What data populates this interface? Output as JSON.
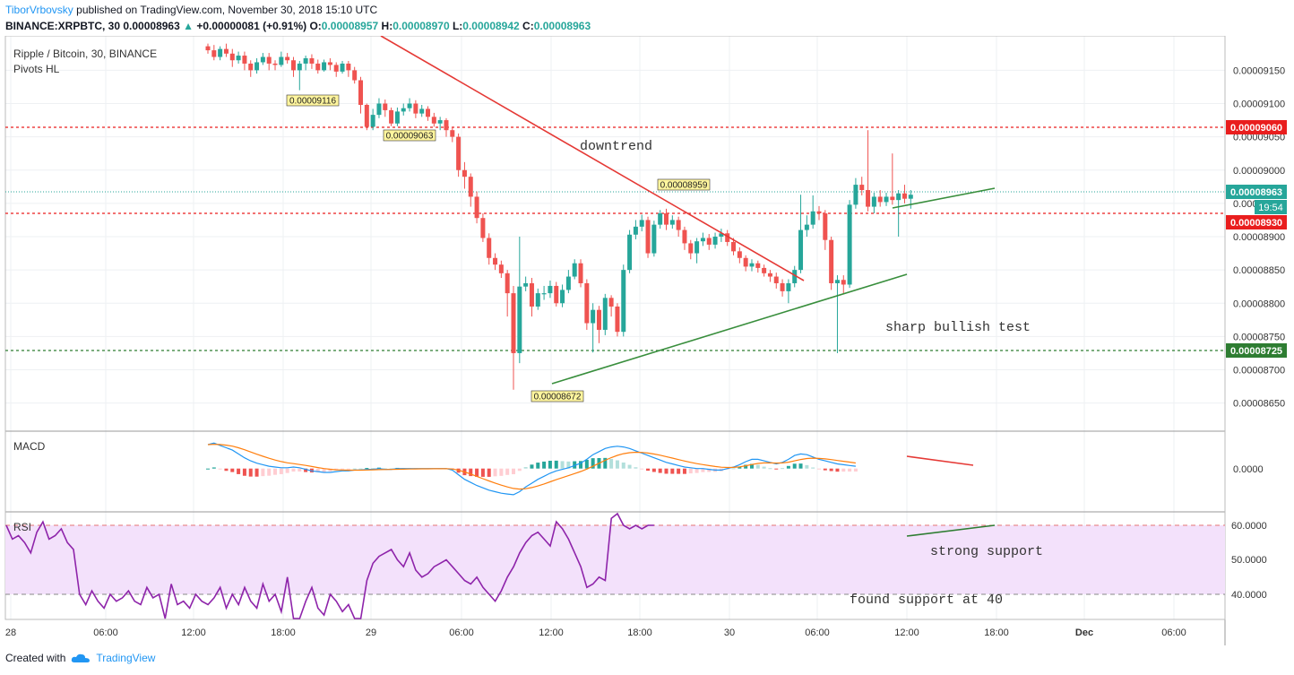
{
  "header": {
    "author": "TiborVrbovsky",
    "published": "published on TradingView.com, November 30, 2018 15:10 UTC",
    "symbol": "BINANCE:XRPBTC, 30",
    "price": "0.00008963",
    "arrow": "▲",
    "change": "+0.00000081 (+0.91%)",
    "open_label": "O:",
    "open": "0.00008957",
    "high_label": "H:",
    "high": "0.00008970",
    "low_label": "L:",
    "low": "0.00008942",
    "close_label": "C:",
    "close": "0.00008963"
  },
  "panes": {
    "main_title": "Ripple / Bitcoin, 30, BINANCE",
    "main_indicator": "Pivots HL",
    "macd_label": "MACD",
    "rsi_label": "RSI"
  },
  "footer": {
    "created_with": "Created with",
    "brand": "TradingView"
  },
  "colors": {
    "up": "#26a69a",
    "down": "#ef5350",
    "resistance": "#e91e1e",
    "support": "#2e7d32",
    "trend_down": "#e53935",
    "trend_up": "#388e3c",
    "macd": "#2196f3",
    "signal": "#ff7f0e",
    "rsi": "#8e24aa",
    "rsi_band": "#f3e1fb",
    "pivot_bg": "#fff59d"
  },
  "chart_data": {
    "type": "candlestick",
    "yaxis_ticks": [
      "0.00009150",
      "0.00009100",
      "0.00009050",
      "0.00009000",
      "0.00008950",
      "0.00008900",
      "0.00008850",
      "0.00008800",
      "0.00008750",
      "0.00008700",
      "0.00008650"
    ],
    "xaxis_ticks": [
      "28",
      "06:00",
      "12:00",
      "18:00",
      "29",
      "06:00",
      "12:00",
      "18:00",
      "30",
      "06:00",
      "12:00",
      "18:00",
      "Dec",
      "06:00"
    ],
    "price_labels": [
      {
        "value": "0.00009060",
        "kind": "resistance"
      },
      {
        "value": "0.00008963",
        "kind": "last"
      },
      {
        "value": "19:54",
        "kind": "countdown"
      },
      {
        "value": "0.00008930",
        "kind": "resistance"
      },
      {
        "value": "0.00008725",
        "kind": "support"
      }
    ],
    "pivots": [
      {
        "label": "0.00009116"
      },
      {
        "label": "0.00009063"
      },
      {
        "label": "0.00008959"
      },
      {
        "label": "0.00008672"
      }
    ],
    "annotations": [
      "downtrend",
      "sharp bullish test",
      "strong support",
      "found support at 40"
    ],
    "macd_ticks": [
      "0.0000"
    ],
    "rsi_ticks": [
      "60.0000",
      "50.0000",
      "40.0000"
    ],
    "candles": [
      [
        9186,
        9180,
        9190,
        9175
      ],
      [
        9180,
        9170,
        9188,
        9165
      ],
      [
        9170,
        9182,
        9186,
        9165
      ],
      [
        9182,
        9175,
        9190,
        9170
      ],
      [
        9175,
        9165,
        9182,
        9155
      ],
      [
        9165,
        9172,
        9178,
        9160
      ],
      [
        9172,
        9160,
        9178,
        9150
      ],
      [
        9160,
        9150,
        9165,
        9140
      ],
      [
        9150,
        9162,
        9168,
        9145
      ],
      [
        9162,
        9170,
        9176,
        9158
      ],
      [
        9170,
        9160,
        9176,
        9150
      ],
      [
        9160,
        9158,
        9165,
        9150
      ],
      [
        9158,
        9170,
        9178,
        9155
      ],
      [
        9170,
        9165,
        9176,
        9160
      ],
      [
        9165,
        9150,
        9170,
        9140
      ],
      [
        9150,
        9160,
        9164,
        9120
      ],
      [
        9160,
        9168,
        9172,
        9150
      ],
      [
        9168,
        9160,
        9174,
        9152
      ],
      [
        9160,
        9150,
        9166,
        9145
      ],
      [
        9150,
        9162,
        9166,
        9148
      ],
      [
        9162,
        9158,
        9168,
        9150
      ],
      [
        9158,
        9148,
        9162,
        9140
      ],
      [
        9148,
        9160,
        9164,
        9145
      ],
      [
        9160,
        9150,
        9164,
        9140
      ],
      [
        9150,
        9135,
        9155,
        9130
      ],
      [
        9135,
        9098,
        9140,
        9085
      ],
      [
        9098,
        9065,
        9100,
        9060
      ],
      [
        9065,
        9083,
        9092,
        9060
      ],
      [
        9083,
        9100,
        9108,
        9078
      ],
      [
        9100,
        9090,
        9106,
        9080
      ],
      [
        9090,
        9070,
        9094,
        9066
      ],
      [
        9070,
        9088,
        9094,
        9066
      ],
      [
        9088,
        9093,
        9100,
        9082
      ],
      [
        9093,
        9100,
        9108,
        9088
      ],
      [
        9100,
        9085,
        9105,
        9078
      ],
      [
        9085,
        9092,
        9098,
        9080
      ],
      [
        9092,
        9080,
        9096,
        9074
      ],
      [
        9080,
        9070,
        9086,
        9065
      ],
      [
        9070,
        9075,
        9080,
        9060
      ],
      [
        9075,
        9060,
        9078,
        9050
      ],
      [
        9060,
        9050,
        9064,
        9042
      ],
      [
        9050,
        9000,
        9055,
        8990
      ],
      [
        9000,
        8990,
        9012,
        8972
      ],
      [
        8990,
        8960,
        8995,
        8945
      ],
      [
        8960,
        8928,
        8968,
        8920
      ],
      [
        8928,
        8898,
        8935,
        8892
      ],
      [
        8898,
        8868,
        8905,
        8858
      ],
      [
        8868,
        8858,
        8875,
        8850
      ],
      [
        8858,
        8845,
        8864,
        8838
      ],
      [
        8845,
        8815,
        8850,
        8780
      ],
      [
        8815,
        8725,
        8826,
        8670
      ],
      [
        8725,
        8825,
        8900,
        8710
      ],
      [
        8825,
        8830,
        8840,
        8818
      ],
      [
        8830,
        8795,
        8838,
        8780
      ],
      [
        8795,
        8815,
        8822,
        8790
      ],
      [
        8815,
        8815,
        8826,
        8805
      ],
      [
        8815,
        8826,
        8834,
        8808
      ],
      [
        8826,
        8800,
        8832,
        8795
      ],
      [
        8800,
        8820,
        8828,
        8794
      ],
      [
        8820,
        8840,
        8850,
        8815
      ],
      [
        8840,
        8860,
        8866,
        8836
      ],
      [
        8860,
        8830,
        8866,
        8824
      ],
      [
        8830,
        8770,
        8836,
        8760
      ],
      [
        8770,
        8790,
        8800,
        8726
      ],
      [
        8790,
        8760,
        8796,
        8740
      ],
      [
        8760,
        8808,
        8814,
        8752
      ],
      [
        8808,
        8795,
        8812,
        8780
      ],
      [
        8795,
        8757,
        8800,
        8750
      ],
      [
        8757,
        8850,
        8858,
        8750
      ],
      [
        8850,
        8903,
        8910,
        8845
      ],
      [
        8903,
        8915,
        8925,
        8896
      ],
      [
        8915,
        8925,
        8933,
        8908
      ],
      [
        8925,
        8875,
        8930,
        8868
      ],
      [
        8875,
        8918,
        8924,
        8870
      ],
      [
        8918,
        8935,
        8940,
        8912
      ],
      [
        8935,
        8918,
        8942,
        8910
      ],
      [
        8918,
        8925,
        8932,
        8912
      ],
      [
        8925,
        8910,
        8930,
        8900
      ],
      [
        8910,
        8890,
        8915,
        8880
      ],
      [
        8890,
        8875,
        8895,
        8866
      ],
      [
        8875,
        8893,
        8898,
        8860
      ],
      [
        8893,
        8898,
        8906,
        8886
      ],
      [
        8898,
        8888,
        8904,
        8880
      ],
      [
        8888,
        8900,
        8906,
        8882
      ],
      [
        8900,
        8905,
        8912,
        8892
      ],
      [
        8905,
        8892,
        8910,
        8886
      ],
      [
        8892,
        8878,
        8898,
        8872
      ],
      [
        8878,
        8868,
        8884,
        8860
      ],
      [
        8868,
        8855,
        8872,
        8848
      ],
      [
        8855,
        8860,
        8866,
        8848
      ],
      [
        8860,
        8853,
        8864,
        8846
      ],
      [
        8853,
        8845,
        8858,
        8840
      ],
      [
        8845,
        8840,
        8850,
        8832
      ],
      [
        8840,
        8830,
        8846,
        8822
      ],
      [
        8830,
        8818,
        8836,
        8810
      ],
      [
        8818,
        8830,
        8836,
        8800
      ],
      [
        8830,
        8850,
        8856,
        8824
      ],
      [
        8850,
        8910,
        8963,
        8845
      ],
      [
        8910,
        8918,
        8932,
        8900
      ],
      [
        8918,
        8938,
        8962,
        8912
      ],
      [
        8938,
        8935,
        8946,
        8925
      ],
      [
        8935,
        8895,
        8940,
        8880
      ],
      [
        8895,
        8830,
        8900,
        8820
      ],
      [
        8830,
        8835,
        8842,
        8725
      ],
      [
        8835,
        8828,
        8842,
        8815
      ],
      [
        8828,
        8948,
        8955,
        8823
      ],
      [
        8948,
        8978,
        8988,
        8942
      ],
      [
        8978,
        8970,
        8990,
        8962
      ],
      [
        8970,
        8945,
        9060,
        8938
      ],
      [
        8945,
        8960,
        8966,
        8935
      ],
      [
        8960,
        8952,
        8970,
        8945
      ],
      [
        8952,
        8960,
        8966,
        8946
      ],
      [
        8960,
        8955,
        9025,
        8948
      ],
      [
        8955,
        8965,
        8970,
        8900
      ],
      [
        8965,
        8957,
        8978,
        8950
      ],
      [
        8957,
        8963,
        8970,
        8942
      ]
    ],
    "macd": [
      0.31,
      0.33,
      0.3,
      0.27,
      0.24,
      0.19,
      0.14,
      0.1,
      0.07,
      0.05,
      0.03,
      0.02,
      0.01,
      0.01,
      0.02,
      0.01,
      -0.01,
      -0.03,
      -0.04,
      -0.05,
      -0.05,
      -0.04,
      -0.03,
      -0.03,
      -0.02,
      -0.02,
      -0.01,
      -0.01,
      0.0,
      -0.01,
      -0.01,
      0.0,
      0.0,
      0.0,
      0.0,
      0.0,
      0.0,
      0.0,
      0.0,
      0.0,
      -0.02,
      -0.08,
      -0.14,
      -0.18,
      -0.22,
      -0.25,
      -0.28,
      -0.3,
      -0.32,
      -0.33,
      -0.34,
      -0.3,
      -0.24,
      -0.19,
      -0.14,
      -0.1,
      -0.06,
      -0.03,
      -0.01,
      0.01,
      0.04,
      0.07,
      0.12,
      0.18,
      0.22,
      0.26,
      0.28,
      0.29,
      0.28,
      0.26,
      0.23,
      0.2,
      0.17,
      0.14,
      0.11,
      0.08,
      0.06,
      0.04,
      0.02,
      0.01,
      0.0,
      0.0,
      -0.01,
      -0.02,
      -0.02,
      0.0,
      0.02,
      0.05,
      0.09,
      0.12,
      0.12,
      0.1,
      0.08,
      0.06,
      0.08,
      0.12,
      0.17,
      0.19,
      0.18,
      0.15,
      0.12,
      0.1,
      0.08,
      0.06,
      0.05,
      0.04,
      0.03
    ],
    "macd_bounds": [
      -0.55,
      0.45
    ],
    "rsi": [
      60,
      56,
      57,
      55,
      52,
      58,
      61,
      56,
      57,
      59,
      55,
      53,
      40,
      37,
      41,
      38,
      36,
      40,
      38,
      39,
      41,
      38,
      37,
      42,
      39,
      40,
      33,
      43,
      37,
      38,
      36,
      40,
      38,
      37,
      39,
      42,
      36,
      40,
      37,
      42,
      38,
      36,
      43,
      38,
      40,
      35,
      45,
      30,
      32,
      38,
      42,
      36,
      34,
      40,
      38,
      35,
      37,
      32,
      30,
      44,
      49,
      51,
      52,
      53,
      50,
      48,
      52,
      47,
      45,
      46,
      48,
      49,
      50,
      48,
      46,
      44,
      43,
      45,
      42,
      40,
      38,
      41,
      45,
      48,
      52,
      55,
      57,
      58,
      56,
      54,
      61,
      59,
      56,
      52,
      48,
      42,
      43,
      45,
      44,
      62,
      64,
      60,
      59,
      60,
      59,
      60,
      60
    ],
    "rsi_bounds": [
      33,
      65
    ]
  }
}
